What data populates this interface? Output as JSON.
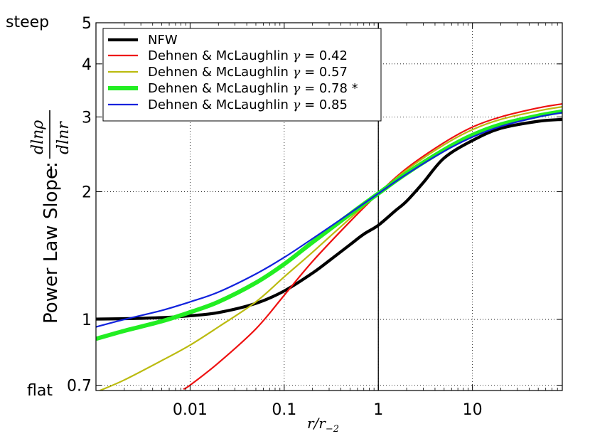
{
  "chart_data": {
    "type": "line",
    "title": "",
    "xlabel": "r/r",
    "xlabel_sub": "−2",
    "ylabel": "Power Law Slope: ",
    "ylabel_minus": "−",
    "ylabel_num": "dlnρ",
    "ylabel_den": "dlnr",
    "x_scale": "log",
    "y_scale": "log",
    "xlim": [
      0.001,
      90
    ],
    "ylim": [
      0.68,
      5
    ],
    "xticks": [
      0.01,
      0.1,
      1,
      10
    ],
    "xtick_labels": [
      "0.01",
      "0.1",
      "1",
      "10"
    ],
    "yticks": [
      0.7,
      1,
      2,
      3,
      4,
      5
    ],
    "ytick_labels": [
      "0.7",
      "1",
      "2",
      "3",
      "4",
      "5"
    ],
    "y_side_labels": {
      "top": "steep",
      "bottom": "flat"
    },
    "grid": true,
    "vline_x": 1,
    "legend_position": "top-left",
    "series": [
      {
        "name": "NFW",
        "gamma": null,
        "color": "#000000",
        "width": "thick",
        "x": [
          0.001,
          0.002,
          0.005,
          0.01,
          0.02,
          0.05,
          0.1,
          0.2,
          0.3,
          0.5,
          0.7,
          1,
          1.5,
          2,
          3,
          5,
          10,
          20,
          50,
          90
        ],
        "y": [
          1.002,
          1.004,
          1.01,
          1.02,
          1.038,
          1.091,
          1.167,
          1.286,
          1.375,
          1.5,
          1.588,
          1.667,
          1.8,
          1.9,
          2.1,
          2.4,
          2.64,
          2.82,
          2.93,
          2.96
        ]
      },
      {
        "name": "Dehnen & McLaughlin",
        "gamma": "0.42",
        "color": "#ee1111",
        "width": "thin",
        "x": [
          0.0085,
          0.01,
          0.02,
          0.05,
          0.1,
          0.2,
          0.5,
          1,
          2,
          5,
          10,
          20,
          50,
          90
        ],
        "y": [
          0.685,
          0.7,
          0.79,
          0.95,
          1.14,
          1.37,
          1.7,
          1.98,
          2.27,
          2.61,
          2.84,
          3.0,
          3.15,
          3.22
        ]
      },
      {
        "name": "Dehnen & McLaughlin",
        "gamma": "0.57",
        "color": "#bbbb10",
        "width": "thin",
        "x": [
          0.0011,
          0.002,
          0.005,
          0.01,
          0.02,
          0.05,
          0.1,
          0.2,
          0.5,
          1,
          2,
          5,
          10,
          20,
          50,
          90
        ],
        "y": [
          0.68,
          0.72,
          0.8,
          0.87,
          0.96,
          1.1,
          1.26,
          1.44,
          1.73,
          1.98,
          2.25,
          2.58,
          2.8,
          2.96,
          3.1,
          3.17
        ]
      },
      {
        "name": "Dehnen & McLaughlin",
        "gamma": "0.78",
        "suffix": " *",
        "color": "#22ee22",
        "width": "thickest",
        "x": [
          0.001,
          0.002,
          0.005,
          0.01,
          0.02,
          0.05,
          0.1,
          0.2,
          0.5,
          1,
          2,
          5,
          10,
          20,
          50,
          90
        ],
        "y": [
          0.9,
          0.94,
          0.99,
          1.04,
          1.1,
          1.22,
          1.35,
          1.52,
          1.77,
          1.98,
          2.21,
          2.51,
          2.72,
          2.88,
          3.02,
          3.09
        ]
      },
      {
        "name": "Dehnen & McLaughlin",
        "gamma": "0.85",
        "color": "#1122dd",
        "width": "thin",
        "x": [
          0.001,
          0.002,
          0.005,
          0.01,
          0.02,
          0.05,
          0.1,
          0.2,
          0.5,
          1,
          2,
          5,
          10,
          20,
          50,
          90
        ],
        "y": [
          0.96,
          1.0,
          1.05,
          1.1,
          1.16,
          1.28,
          1.4,
          1.55,
          1.78,
          1.98,
          2.2,
          2.49,
          2.69,
          2.85,
          3.0,
          3.07
        ]
      }
    ]
  }
}
